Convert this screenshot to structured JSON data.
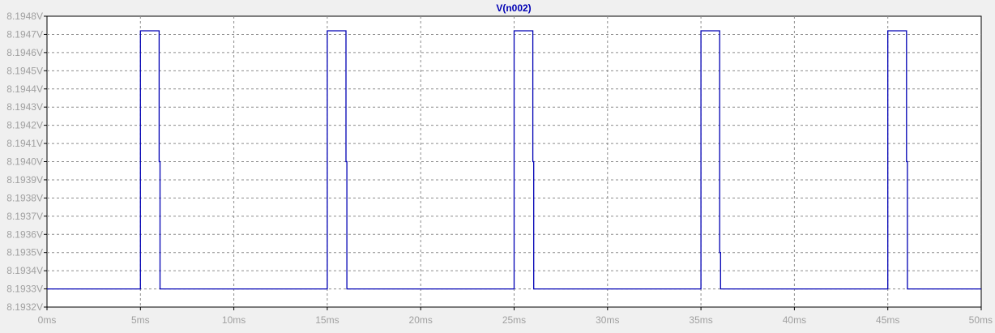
{
  "chart_data": {
    "type": "line",
    "title": "V(n002)",
    "xlabel": "",
    "ylabel": "",
    "x_unit": "ms",
    "y_unit": "V",
    "xlim": [
      0,
      50
    ],
    "ylim": [
      8.1932,
      8.1948
    ],
    "grid": true,
    "x_ticks": [
      "0ms",
      "5ms",
      "10ms",
      "15ms",
      "20ms",
      "25ms",
      "30ms",
      "35ms",
      "40ms",
      "45ms",
      "50ms"
    ],
    "y_ticks": [
      "8.1932V",
      "8.1933V",
      "8.1934V",
      "8.1935V",
      "8.1936V",
      "8.1937V",
      "8.1938V",
      "8.1939V",
      "8.1940V",
      "8.1941V",
      "8.1942V",
      "8.1943V",
      "8.1944V",
      "8.1945V",
      "8.1946V",
      "8.1947V",
      "8.1948V"
    ],
    "series": [
      {
        "name": "V(n002)",
        "color": "#0000b4",
        "x": [
          0,
          4.95,
          5.0,
          5.95,
          6.0,
          6.05,
          14.95,
          15.0,
          15.95,
          16.0,
          16.05,
          24.95,
          25.0,
          25.95,
          26.0,
          26.05,
          34.95,
          35.0,
          35.95,
          36.0,
          36.05,
          44.95,
          45.0,
          45.95,
          46.0,
          46.05,
          50
        ],
        "y": [
          8.1933,
          8.1933,
          8.19472,
          8.19472,
          8.194,
          8.1933,
          8.1933,
          8.19472,
          8.19472,
          8.194,
          8.1933,
          8.1933,
          8.19472,
          8.19472,
          8.194,
          8.1933,
          8.1933,
          8.19472,
          8.19472,
          8.1935,
          8.1933,
          8.1933,
          8.19472,
          8.19472,
          8.194,
          8.1933,
          8.1933
        ]
      }
    ]
  },
  "colors": {
    "background": "#f0f0f0",
    "plot_background": "#ffffff",
    "grid": "#8c8c8c",
    "tick_label": "#a0a0a0",
    "title": "#0000b4"
  }
}
